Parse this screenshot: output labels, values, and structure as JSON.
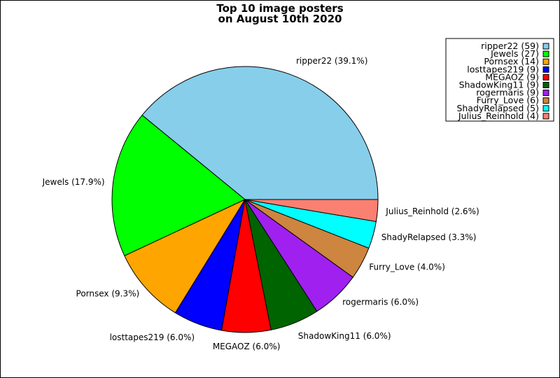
{
  "chart_data": {
    "type": "pie",
    "title": [
      "Top 10 image posters",
      "on August 10th 2020"
    ],
    "slices": [
      {
        "name": "ripper22",
        "count": 59,
        "pct": "39.1%",
        "color": "#87ceeb",
        "legend": "ripper22 (59)",
        "label": "ripper22 (39.1%)"
      },
      {
        "name": "Jewels",
        "count": 27,
        "pct": "17.9%",
        "color": "#00ff00",
        "legend": "Jewels (27)",
        "label": "Jewels (17.9%)"
      },
      {
        "name": "Pornsex",
        "count": 14,
        "pct": "9.3%",
        "color": "#ffa500",
        "legend": "Pornsex (14)",
        "label": "Pornsex (9.3%)"
      },
      {
        "name": "losttapes219",
        "count": 9,
        "pct": "6.0%",
        "color": "#0000ff",
        "legend": "losttapes219 (9)",
        "label": "losttapes219 (6.0%)"
      },
      {
        "name": "MEGAOZ",
        "count": 9,
        "pct": "6.0%",
        "color": "#ff0000",
        "legend": "MEGAOZ (9)",
        "label": "MEGAOZ (6.0%)"
      },
      {
        "name": "ShadowKing11",
        "count": 9,
        "pct": "6.0%",
        "color": "#006400",
        "legend": "ShadowKing11 (9)",
        "label": "ShadowKing11 (6.0%)"
      },
      {
        "name": "rogermaris",
        "count": 9,
        "pct": "6.0%",
        "color": "#a020f0",
        "legend": "rogermaris (9)",
        "label": "rogermaris (6.0%)"
      },
      {
        "name": "Furry_Love",
        "count": 6,
        "pct": "4.0%",
        "color": "#cd853f",
        "legend": "Furry_Love (6)",
        "label": "Furry_Love (4.0%)"
      },
      {
        "name": "ShadyRelapsed",
        "count": 5,
        "pct": "3.3%",
        "color": "#00ffff",
        "legend": "ShadyRelapsed (5)",
        "label": "ShadyRelapsed (3.3%)"
      },
      {
        "name": "Julius_Reinhold",
        "count": 4,
        "pct": "2.6%",
        "color": "#fa8072",
        "legend": "Julius_Reinhold (4)",
        "label": "Julius_Reinhold (2.6%)"
      }
    ],
    "legend_position": "top-right",
    "start_angle": "3 o'clock",
    "direction": "counterclockwise"
  }
}
